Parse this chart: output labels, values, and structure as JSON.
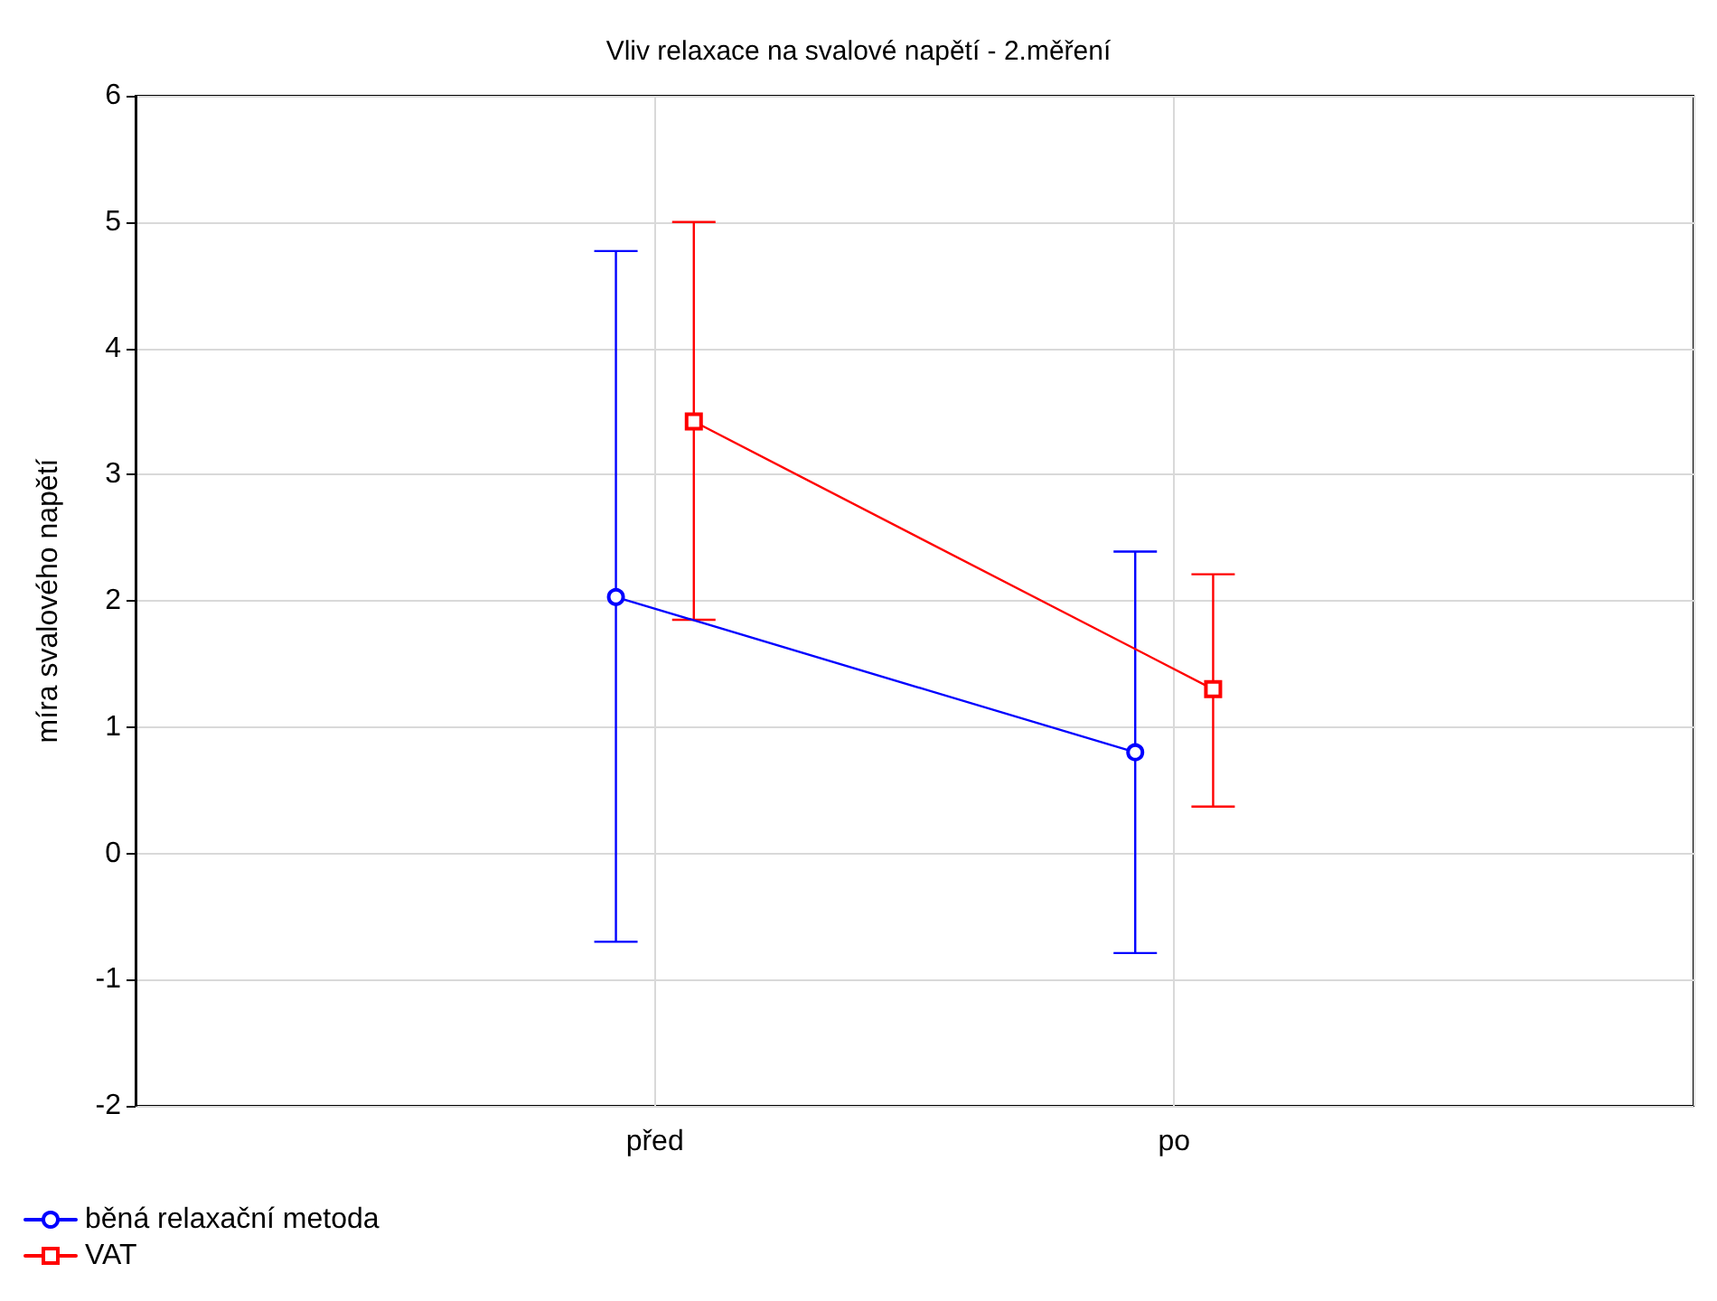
{
  "chart_data": {
    "type": "line",
    "title": "Vliv relaxace na svalové napětí - 2.měření",
    "ylabel": "míra svalového napětí",
    "categories": [
      "před",
      "po"
    ],
    "series": [
      {
        "name": "běná relaxační metoda",
        "color": "#0000ff",
        "marker": "circle",
        "values": [
          2.03,
          0.8
        ],
        "errors": [
          [
            -0.7,
            4.77
          ],
          [
            -0.79,
            2.39
          ]
        ]
      },
      {
        "name": "VAT",
        "color": "#ff0000",
        "marker": "square",
        "values": [
          3.42,
          1.3
        ],
        "errors": [
          [
            1.85,
            5.0
          ],
          [
            0.37,
            2.21
          ]
        ]
      }
    ],
    "ylim": [
      -2,
      6
    ],
    "yticks": [
      -2,
      -1,
      0,
      1,
      2,
      3,
      4,
      5,
      6
    ],
    "grid": true,
    "legend": "bottom left",
    "line_style": "solid"
  }
}
